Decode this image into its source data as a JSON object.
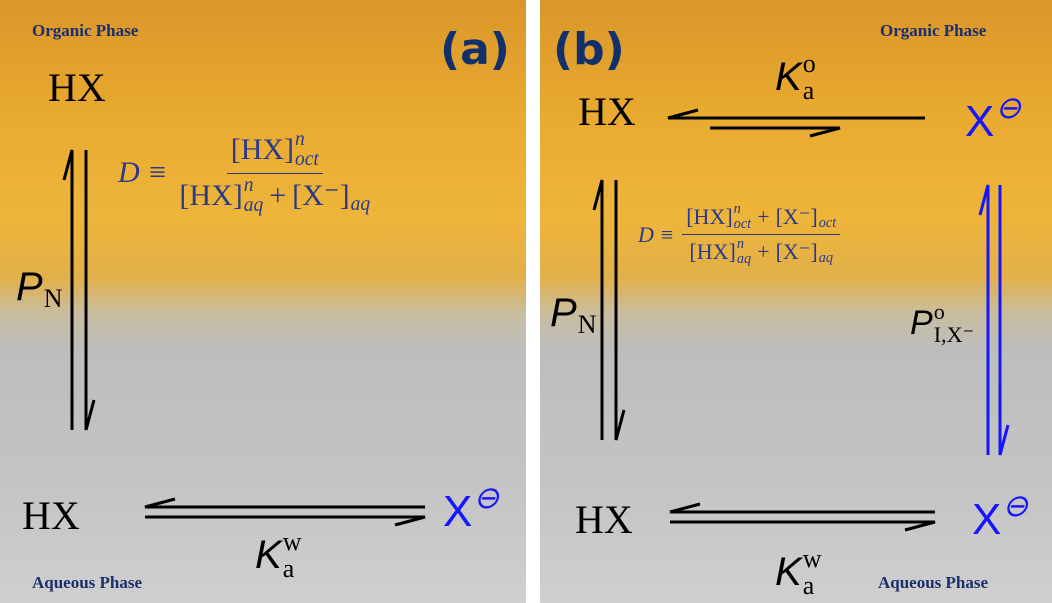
{
  "panel_a": {
    "label": "(a)",
    "organic_phase": "Organic Phase",
    "aqueous_phase": "Aqueous Phase",
    "hx_top": "HX",
    "hx_bottom": "HX",
    "anion_bottom": {
      "text": "X",
      "sup": "⊖"
    },
    "partition": {
      "text": "P",
      "sub": "N"
    },
    "acid_constant": {
      "text": "K",
      "sup": "w",
      "sub": "a"
    },
    "equation": {
      "lhs": "D ≡",
      "numerator": [
        {
          "text": "[HX]",
          "sup": "n",
          "sub": "oct"
        }
      ],
      "denominator": [
        {
          "text": "[HX]",
          "sup": "n",
          "sub": "aq"
        },
        {
          "text": "+"
        },
        {
          "text": "[X⁻]",
          "sub": "aq"
        }
      ]
    }
  },
  "panel_b": {
    "label": "(b)",
    "organic_phase": "Organic Phase",
    "aqueous_phase": "Aqueous Phase",
    "hx_top": "HX",
    "hx_bottom": "HX",
    "anion_top": {
      "text": "X",
      "sup": "⊖"
    },
    "anion_bottom": {
      "text": "X",
      "sup": "⊖"
    },
    "partition": {
      "text": "P",
      "sub": "N"
    },
    "ion_partition": {
      "text": "P",
      "sup": "o",
      "sub": "I,X⁻"
    },
    "acid_constant_organic": {
      "text": "K",
      "sup": "o",
      "sub": "a"
    },
    "acid_constant": {
      "text": "K",
      "sup": "w",
      "sub": "a"
    },
    "equation": {
      "lhs": "D ≡",
      "numerator": [
        {
          "text": "[HX]",
          "sup": "n",
          "sub": "oct"
        },
        {
          "text": "+"
        },
        {
          "text": "[X⁻]",
          "sub": "oct"
        }
      ],
      "denominator": [
        {
          "text": "[HX]",
          "sup": "n",
          "sub": "aq"
        },
        {
          "text": "+"
        },
        {
          "text": "[X⁻]",
          "sub": "aq"
        }
      ]
    }
  }
}
